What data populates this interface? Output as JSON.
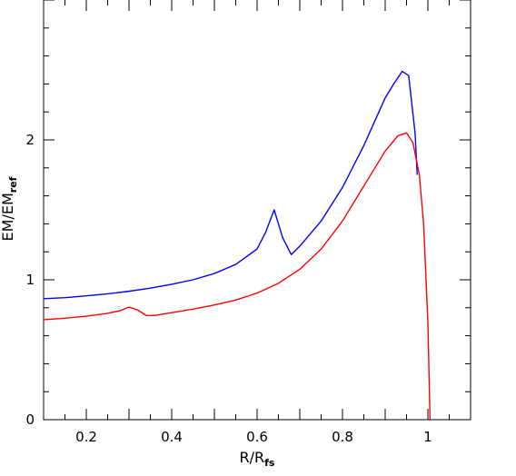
{
  "chart_data": {
    "type": "line",
    "xlabel": {
      "main": "R/R",
      "sub": "fs"
    },
    "ylabel": {
      "main": "EM/EM",
      "sub": "ref"
    },
    "xlim": [
      0.1,
      1.1
    ],
    "ylim": [
      0,
      3.0
    ],
    "x_tick_labels": [
      "0.2",
      "0.4",
      "0.6",
      "0.8",
      "1"
    ],
    "x_tick_values": [
      0.2,
      0.4,
      0.6,
      0.8,
      1.0
    ],
    "y_tick_labels": [
      "0",
      "1",
      "2"
    ],
    "y_tick_values": [
      0,
      1,
      2
    ],
    "grid": false,
    "series": [
      {
        "color": "#0000ff",
        "points": [
          [
            0.1,
            0.865
          ],
          [
            0.15,
            0.872
          ],
          [
            0.2,
            0.885
          ],
          [
            0.25,
            0.9
          ],
          [
            0.3,
            0.918
          ],
          [
            0.35,
            0.94
          ],
          [
            0.4,
            0.968
          ],
          [
            0.45,
            1.0
          ],
          [
            0.5,
            1.045
          ],
          [
            0.55,
            1.11
          ],
          [
            0.6,
            1.22
          ],
          [
            0.62,
            1.34
          ],
          [
            0.64,
            1.5
          ],
          [
            0.66,
            1.3
          ],
          [
            0.68,
            1.18
          ],
          [
            0.7,
            1.24
          ],
          [
            0.75,
            1.42
          ],
          [
            0.8,
            1.66
          ],
          [
            0.85,
            1.96
          ],
          [
            0.9,
            2.3
          ],
          [
            0.92,
            2.4
          ],
          [
            0.94,
            2.49
          ],
          [
            0.955,
            2.46
          ],
          [
            0.97,
            2.05
          ],
          [
            0.975,
            1.75
          ]
        ]
      },
      {
        "color": "#ff0000",
        "points": [
          [
            0.1,
            0.715
          ],
          [
            0.15,
            0.725
          ],
          [
            0.2,
            0.74
          ],
          [
            0.25,
            0.76
          ],
          [
            0.28,
            0.78
          ],
          [
            0.3,
            0.805
          ],
          [
            0.32,
            0.785
          ],
          [
            0.34,
            0.745
          ],
          [
            0.36,
            0.745
          ],
          [
            0.4,
            0.765
          ],
          [
            0.45,
            0.79
          ],
          [
            0.5,
            0.82
          ],
          [
            0.55,
            0.855
          ],
          [
            0.6,
            0.905
          ],
          [
            0.65,
            0.975
          ],
          [
            0.7,
            1.075
          ],
          [
            0.75,
            1.22
          ],
          [
            0.8,
            1.42
          ],
          [
            0.85,
            1.67
          ],
          [
            0.9,
            1.92
          ],
          [
            0.93,
            2.03
          ],
          [
            0.95,
            2.05
          ],
          [
            0.965,
            1.98
          ],
          [
            0.98,
            1.75
          ],
          [
            0.99,
            1.4
          ],
          [
            1.0,
            0.7
          ],
          [
            1.005,
            0.0
          ]
        ]
      }
    ]
  }
}
